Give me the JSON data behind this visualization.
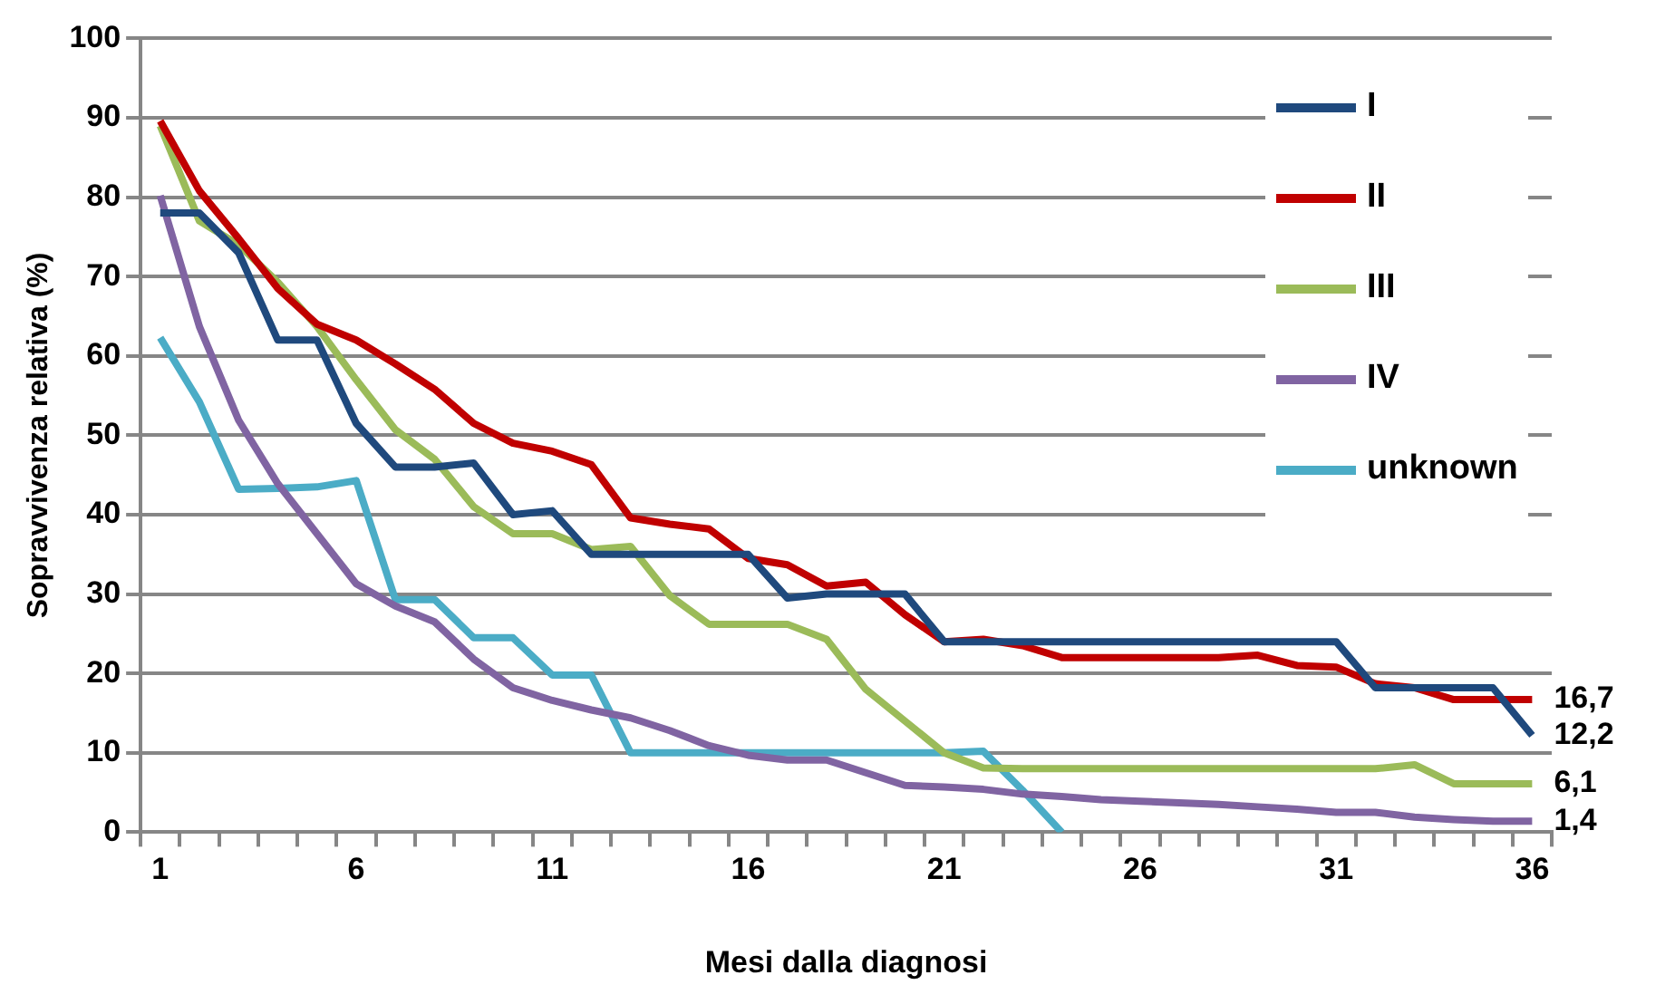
{
  "chart_data": {
    "type": "line",
    "xlabel": "Mesi dalla diagnosi",
    "ylabel": "Sopravvivenza relativa (%)",
    "x": [
      1,
      2,
      3,
      4,
      5,
      6,
      7,
      8,
      9,
      10,
      11,
      12,
      13,
      14,
      15,
      16,
      17,
      18,
      19,
      20,
      21,
      22,
      23,
      24,
      25,
      26,
      27,
      28,
      29,
      30,
      31,
      32,
      33,
      34,
      35,
      36
    ],
    "xlim": [
      0.5,
      36.5
    ],
    "xticks": [
      1,
      6,
      11,
      16,
      21,
      26,
      31,
      36,
      {
        "value": 0.5,
        "label": null
      },
      {
        "value": 1.5,
        "label": null
      },
      {
        "value": 2.5,
        "label": null
      },
      {
        "value": 3.5,
        "label": null
      },
      {
        "value": 4.5,
        "label": null
      },
      {
        "value": 5.5,
        "label": null
      },
      {
        "value": 6.5,
        "label": null
      },
      {
        "value": 7.5,
        "label": null
      },
      {
        "value": 8.5,
        "label": null
      },
      {
        "value": 9.5,
        "label": null
      },
      {
        "value": 10.5,
        "label": null
      },
      {
        "value": 11.5,
        "label": null
      },
      {
        "value": 12.5,
        "label": null
      },
      {
        "value": 13.5,
        "label": null
      },
      {
        "value": 14.5,
        "label": null
      },
      {
        "value": 15.5,
        "label": null
      },
      {
        "value": 16.5,
        "label": null
      },
      {
        "value": 17.5,
        "label": null
      },
      {
        "value": 18.5,
        "label": null
      },
      {
        "value": 19.5,
        "label": null
      },
      {
        "value": 20.5,
        "label": null
      },
      {
        "value": 21.5,
        "label": null
      },
      {
        "value": 22.5,
        "label": null
      },
      {
        "value": 23.5,
        "label": null
      },
      {
        "value": 24.5,
        "label": null
      },
      {
        "value": 25.5,
        "label": null
      },
      {
        "value": 26.5,
        "label": null
      },
      {
        "value": 27.5,
        "label": null
      },
      {
        "value": 28.5,
        "label": null
      },
      {
        "value": 29.5,
        "label": null
      },
      {
        "value": 30.5,
        "label": null
      },
      {
        "value": 31.5,
        "label": null
      },
      {
        "value": 32.5,
        "label": null
      },
      {
        "value": 33.5,
        "label": null
      },
      {
        "value": 34.5,
        "label": null
      },
      {
        "value": 35.5,
        "label": null
      },
      {
        "value": 36.5,
        "label": null
      }
    ],
    "series": [
      {
        "name": "I",
        "color": "#1f497d",
        "values": [
          78,
          78,
          73,
          62,
          62,
          51.5,
          46,
          46,
          46.5,
          40,
          40.5,
          35,
          35,
          35,
          35,
          35,
          29.5,
          30,
          30,
          30,
          24,
          24,
          24,
          24,
          24,
          24,
          24,
          24,
          24,
          24,
          24,
          18.2,
          18.2,
          18.2,
          18.2,
          12.2
        ],
        "value_labels": [
          null,
          null,
          null,
          null,
          null,
          null,
          null,
          null,
          null,
          null,
          null,
          null,
          null,
          null,
          null,
          null,
          null,
          null,
          null,
          null,
          null,
          null,
          null,
          null,
          null,
          null,
          null,
          null,
          null,
          null,
          null,
          null,
          null,
          null,
          null,
          "12,2"
        ]
      },
      {
        "name": "II",
        "color": "#c00000",
        "values": [
          89.6,
          80.8,
          74.8,
          68.5,
          64,
          62,
          59,
          55.8,
          51.5,
          49,
          48,
          46.3,
          39.6,
          38.8,
          38.2,
          34.5,
          33.7,
          31,
          31.5,
          27.4,
          24,
          24.3,
          23.5,
          22,
          22,
          22,
          22,
          22,
          22.3,
          21,
          20.8,
          18.7,
          18.2,
          16.7,
          16.7,
          16.7
        ],
        "value_labels": [
          null,
          null,
          null,
          null,
          null,
          null,
          null,
          null,
          null,
          null,
          null,
          null,
          null,
          null,
          null,
          null,
          null,
          null,
          null,
          null,
          null,
          null,
          null,
          null,
          null,
          null,
          null,
          null,
          null,
          null,
          null,
          null,
          null,
          null,
          null,
          "16,7"
        ]
      },
      {
        "name": "III",
        "color": "#9bbb59",
        "values": [
          89,
          77,
          74,
          69.3,
          63.7,
          57,
          50.7,
          47,
          41,
          37.6,
          37.6,
          35.6,
          36,
          29.8,
          26.2,
          26.2,
          26.2,
          24.3,
          18,
          14,
          10,
          8.1,
          8,
          8,
          8,
          8,
          8,
          8,
          8,
          8,
          8,
          8,
          8.5,
          6.1,
          6.1,
          6.1
        ],
        "value_labels": [
          null,
          null,
          null,
          null,
          null,
          null,
          null,
          null,
          null,
          null,
          null,
          null,
          null,
          null,
          null,
          null,
          null,
          null,
          null,
          null,
          null,
          null,
          null,
          null,
          null,
          null,
          null,
          null,
          null,
          null,
          null,
          null,
          null,
          null,
          null,
          "6,1"
        ]
      },
      {
        "name": "IV",
        "color": "#8064a2",
        "values": [
          80.2,
          63.7,
          51.9,
          43.9,
          37.6,
          31.3,
          28.5,
          26.5,
          21.8,
          18.2,
          16.6,
          15.4,
          14.4,
          12.8,
          10.9,
          9.7,
          9.1,
          9.1,
          7.5,
          5.9,
          5.7,
          5.4,
          4.8,
          4.5,
          4.1,
          3.9,
          3.7,
          3.5,
          3.2,
          2.9,
          2.5,
          2.5,
          1.9,
          1.6,
          1.4,
          1.4
        ],
        "value_labels": [
          null,
          null,
          null,
          null,
          null,
          null,
          null,
          null,
          null,
          null,
          null,
          null,
          null,
          null,
          null,
          null,
          null,
          null,
          null,
          null,
          null,
          null,
          null,
          null,
          null,
          null,
          null,
          null,
          null,
          null,
          null,
          null,
          null,
          null,
          null,
          "1,4"
        ]
      },
      {
        "name": "unknown",
        "color": "#4bacc6",
        "values": [
          62.3,
          54.2,
          43.2,
          43.3,
          43.5,
          44.3,
          29.3,
          29.3,
          24.5,
          24.5,
          19.8,
          19.8,
          10,
          10,
          10,
          10,
          10,
          10,
          10,
          10,
          10,
          10.2,
          5.3,
          0,
          null,
          null,
          null,
          null,
          null,
          null,
          null,
          null,
          null,
          null,
          null,
          null
        ]
      }
    ],
    "ylim": [
      0,
      100
    ],
    "yticks": [
      0,
      10,
      20,
      30,
      40,
      50,
      60,
      70,
      80,
      90,
      100
    ],
    "grid": "y",
    "legend": "top right",
    "marker": "none",
    "line_style": "solid"
  }
}
